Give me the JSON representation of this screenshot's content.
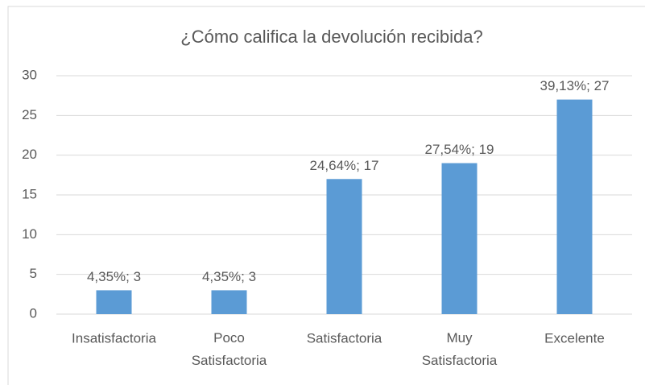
{
  "chart_data": {
    "type": "bar",
    "title": "¿Cómo califica la devolución recibida?",
    "categories": [
      "Insatisfactoria",
      "Poco Satisfactoria",
      "Satisfactoria",
      "Muy Satisfactoria",
      "Excelente"
    ],
    "values": [
      3,
      3,
      17,
      19,
      27
    ],
    "value_labels": [
      "4,35%; 3",
      "4,35%; 3",
      "24,64%; 17",
      "27,54%; 19",
      "39,13%; 27"
    ],
    "color": "#5b9bd5",
    "ylim": [
      0,
      30
    ],
    "yticks": [
      0,
      5,
      10,
      15,
      20,
      25,
      30
    ],
    "grid": true
  }
}
